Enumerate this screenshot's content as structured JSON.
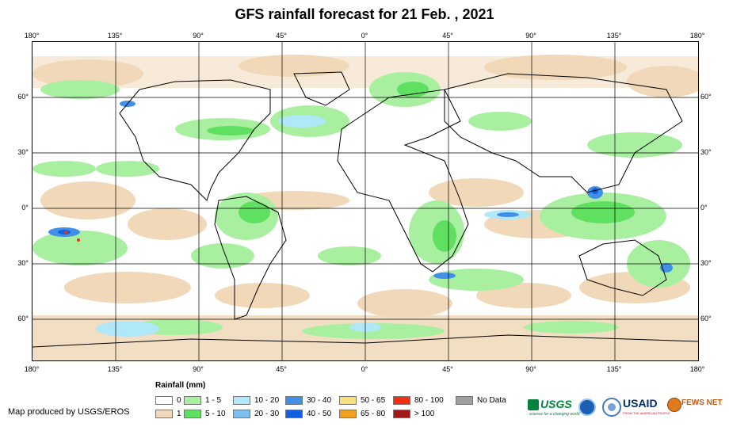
{
  "title": "GFS rainfall forecast for 21 Feb. , 2021",
  "axes": {
    "top_ticks": [
      "180°",
      "135°",
      "90°",
      "45°",
      "0°",
      "45°",
      "90°",
      "135°",
      "180°"
    ],
    "bottom_ticks": [
      "180°",
      "135°",
      "90°",
      "45°",
      "0°",
      "45°",
      "90°",
      "135°",
      "180°"
    ],
    "left_ticks": [
      "60°",
      "30°",
      "0°",
      "30°",
      "60°"
    ],
    "right_ticks": [
      "60°",
      "30°",
      "0°",
      "30°",
      "60°"
    ]
  },
  "legend": {
    "title": "Rainfall (mm)",
    "items": [
      {
        "label": "0",
        "color": "#ffffff"
      },
      {
        "label": "1",
        "color": "#f0d8b8"
      },
      {
        "label": "1 - 5",
        "color": "#a8f0a0"
      },
      {
        "label": "5 - 10",
        "color": "#60e060"
      },
      {
        "label": "10 - 20",
        "color": "#b0e8f8"
      },
      {
        "label": "20 - 30",
        "color": "#80c0f0"
      },
      {
        "label": "30 - 40",
        "color": "#4090e8"
      },
      {
        "label": "40 - 50",
        "color": "#1060e0"
      },
      {
        "label": "50 - 65",
        "color": "#f8e080"
      },
      {
        "label": "65 - 80",
        "color": "#f0a020"
      },
      {
        "label": "80 - 100",
        "color": "#f03010"
      },
      {
        "label": "> 100",
        "color": "#a01818"
      },
      {
        "label": "No Data",
        "color": "#a0a0a0"
      }
    ]
  },
  "credit": "Map produced by USGS/EROS",
  "logos": {
    "usgs": "USGS",
    "usgs_tagline": "science for a changing world",
    "usaid": "USAID",
    "usaid_tagline": "FROM THE AMERICAN PEOPLE",
    "fewsnet": "FEWS NET"
  }
}
